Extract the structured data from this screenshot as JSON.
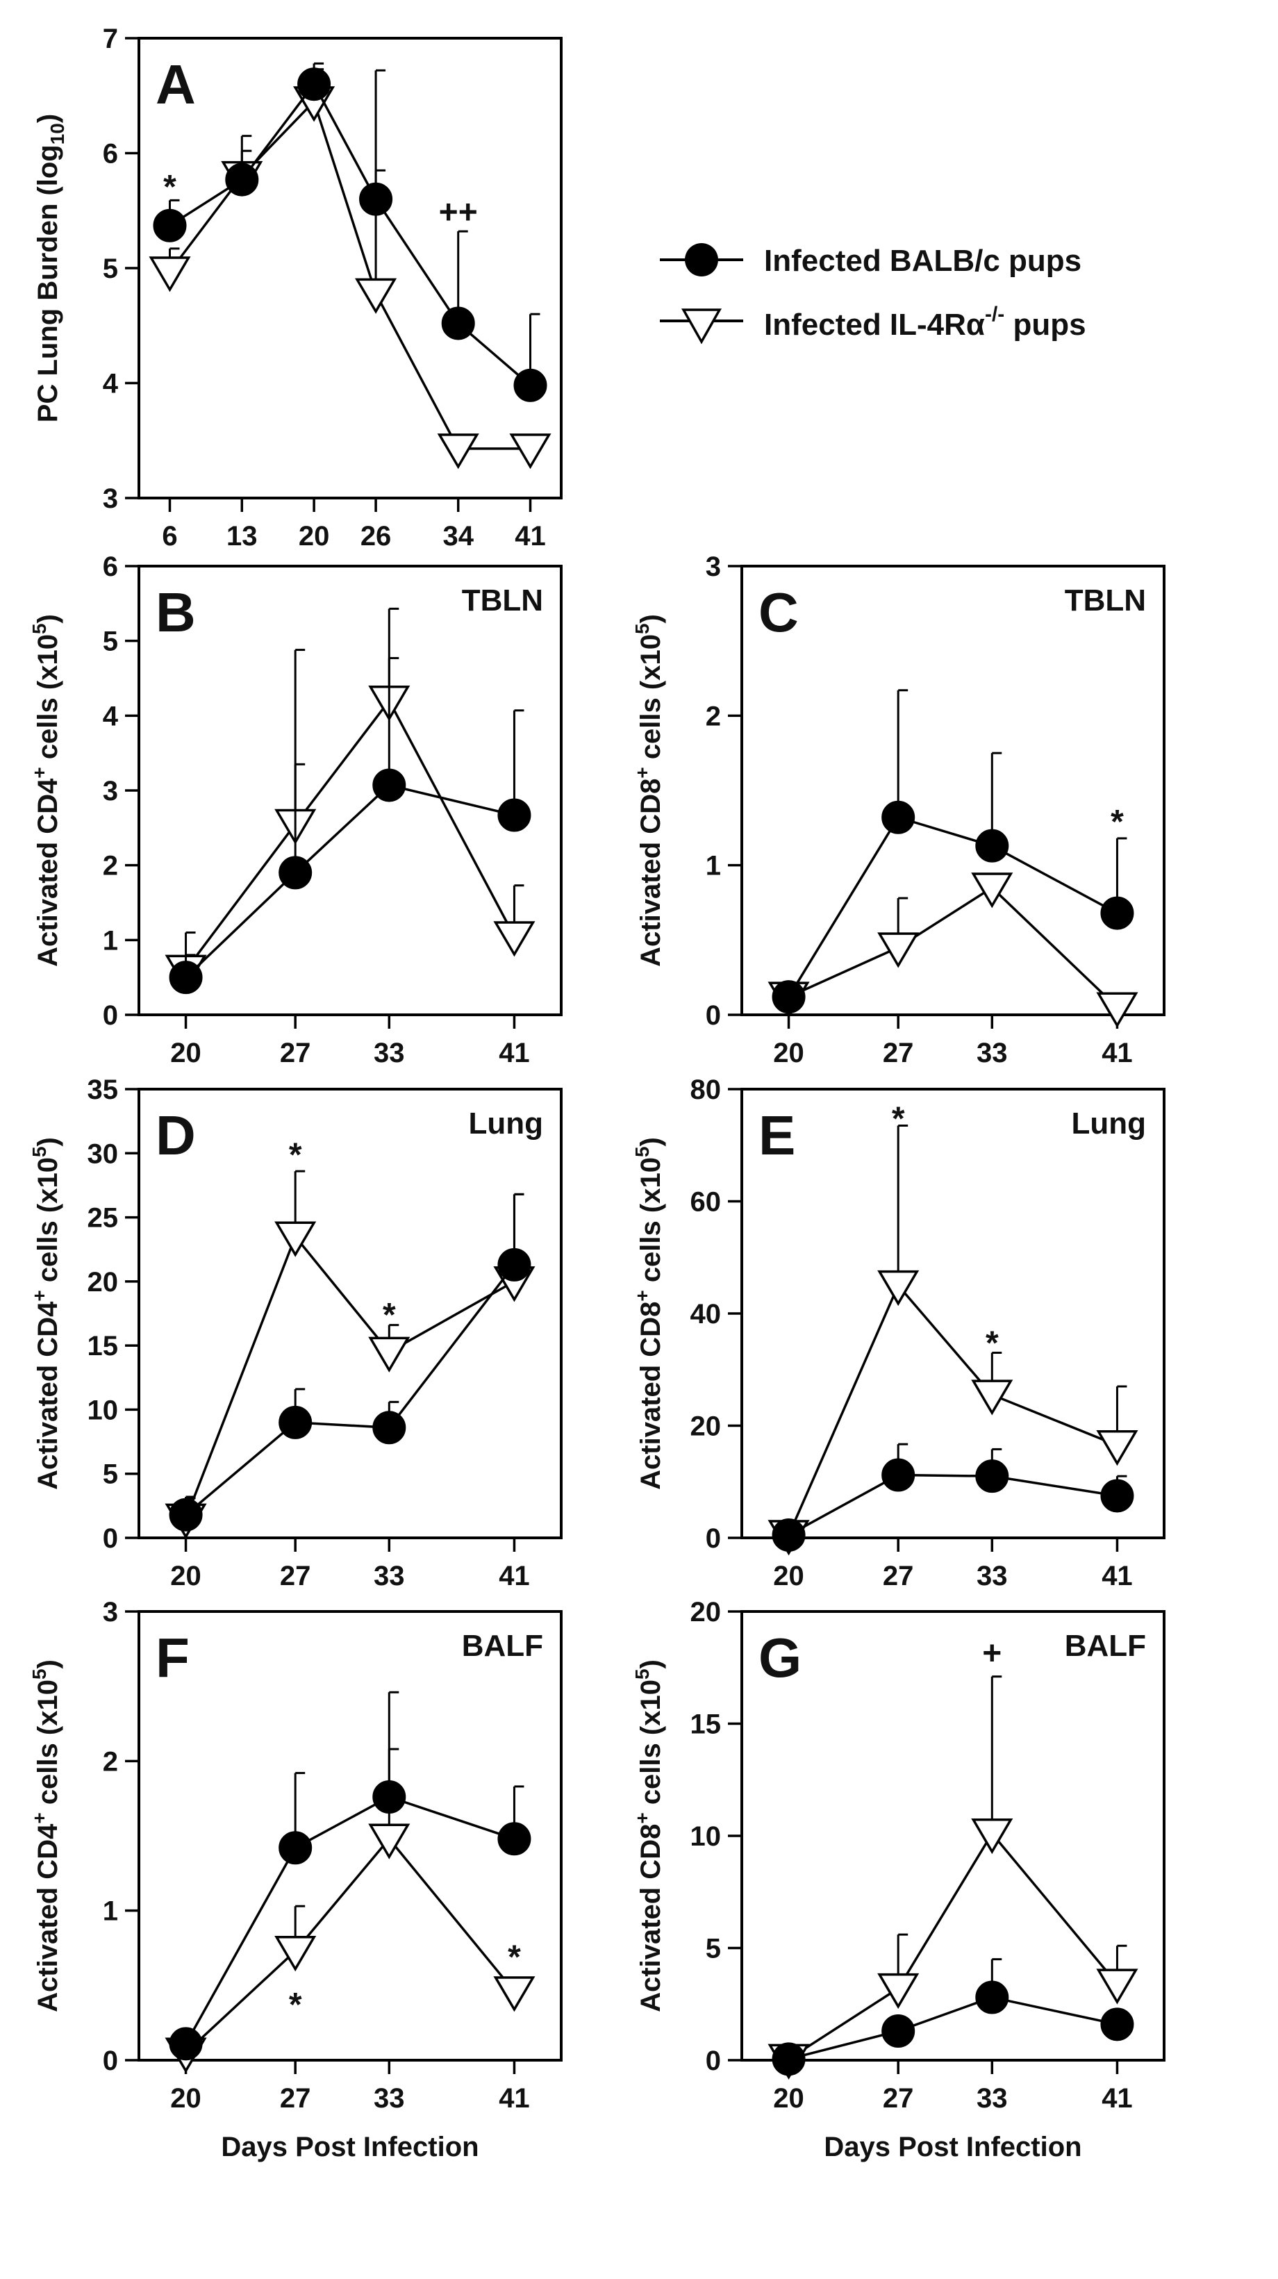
{
  "legend": {
    "entries": [
      {
        "label": "Infected BALB/c pups",
        "marker": "filled-circle"
      },
      {
        "label": "Infected IL-4Rα",
        "sup": "-/-",
        "suffix": " pups",
        "marker": "open-triangle-down"
      }
    ]
  },
  "chart_data": [
    {
      "id": "A",
      "type": "line",
      "panel_label": "A",
      "region_label": "",
      "ylabel": "PC Lung Burden (log",
      "ylabel_sub": "10",
      "ylabel_suffix": ")",
      "ylabel_sup": "",
      "xlabel": "",
      "ylim": [
        3,
        7
      ],
      "yticks": [
        3,
        4,
        5,
        6,
        7
      ],
      "xlim": [
        3,
        44
      ],
      "xticks": [
        6,
        13,
        20,
        26,
        34,
        41
      ],
      "series": [
        {
          "name": "Infected BALB/c pups",
          "marker": "circle",
          "x": [
            6,
            13,
            20,
            26,
            34,
            41
          ],
          "y": [
            5.37,
            5.77,
            6.6,
            5.6,
            4.52,
            3.98
          ],
          "err": [
            0.22,
            0.25,
            0.18,
            1.12,
            0.8,
            0.62
          ]
        },
        {
          "name": "Infected IL-4Rα-/- pups",
          "marker": "triangle",
          "x": [
            6,
            13,
            20,
            26,
            34,
            41
          ],
          "y": [
            4.97,
            5.8,
            6.45,
            4.78,
            3.43,
            3.43
          ],
          "err": [
            0.2,
            0.35,
            0.28,
            1.07,
            0,
            0
          ]
        }
      ],
      "annotations": [
        {
          "text": "*",
          "x": 6,
          "y": 5.72
        },
        {
          "text": "++",
          "x": 34,
          "y": 5.5
        }
      ]
    },
    {
      "id": "B",
      "type": "line",
      "panel_label": "B",
      "region_label": "TBLN",
      "ylabel": "Activated CD4",
      "ylabel_sup": "+",
      "ylabel_suffix": " cells (x10",
      "ylabel_sup2": "5",
      "ylabel_end": ")",
      "xlabel": "",
      "ylim": [
        0,
        6
      ],
      "yticks": [
        0,
        1,
        2,
        3,
        4,
        5,
        6
      ],
      "xlim": [
        17,
        44
      ],
      "xticks": [
        20,
        27,
        33,
        41
      ],
      "series": [
        {
          "name": "Infected BALB/c pups",
          "marker": "circle",
          "x": [
            20,
            27,
            33,
            41
          ],
          "y": [
            0.5,
            1.9,
            3.07,
            2.67
          ],
          "err": [
            0.3,
            1.45,
            1.7,
            1.4
          ]
        },
        {
          "name": "Infected IL-4Rα-/- pups",
          "marker": "triangle",
          "x": [
            20,
            27,
            33,
            41
          ],
          "y": [
            0.6,
            2.55,
            4.2,
            1.05
          ],
          "err": [
            0.5,
            2.33,
            1.23,
            0.68
          ]
        }
      ],
      "annotations": []
    },
    {
      "id": "C",
      "type": "line",
      "panel_label": "C",
      "region_label": "TBLN",
      "ylabel": "Activated CD8",
      "ylabel_sup": "+",
      "ylabel_suffix": " cells (x10",
      "ylabel_sup2": "5",
      "ylabel_end": ")",
      "xlabel": "",
      "ylim": [
        0,
        3
      ],
      "yticks": [
        0,
        1,
        2,
        3
      ],
      "xlim": [
        17,
        44
      ],
      "xticks": [
        20,
        27,
        33,
        41
      ],
      "series": [
        {
          "name": "Infected BALB/c pups",
          "marker": "circle",
          "x": [
            20,
            27,
            33,
            41
          ],
          "y": [
            0.12,
            1.32,
            1.13,
            0.68
          ],
          "err": [
            0.05,
            0.85,
            0.62,
            0.5
          ]
        },
        {
          "name": "Infected IL-4Rα-/- pups",
          "marker": "triangle",
          "x": [
            20,
            27,
            33,
            41
          ],
          "y": [
            0.12,
            0.45,
            0.85,
            0.05
          ],
          "err": [
            0.05,
            0.33,
            0.05,
            0
          ]
        }
      ],
      "annotations": [
        {
          "text": "*",
          "x": 41,
          "y": 1.3
        }
      ]
    },
    {
      "id": "D",
      "type": "line",
      "panel_label": "D",
      "region_label": "Lung",
      "ylabel": "Activated CD4",
      "ylabel_sup": "+",
      "ylabel_suffix": " cells (x10",
      "ylabel_sup2": "5",
      "ylabel_end": ")",
      "xlabel": "",
      "ylim": [
        0,
        35
      ],
      "yticks": [
        0,
        5,
        10,
        15,
        20,
        25,
        30,
        35
      ],
      "xlim": [
        17,
        44
      ],
      "xticks": [
        20,
        27,
        33,
        41
      ],
      "series": [
        {
          "name": "Infected BALB/c pups",
          "marker": "circle",
          "x": [
            20,
            27,
            33,
            41
          ],
          "y": [
            1.8,
            9.0,
            8.6,
            21.3
          ],
          "err": [
            1.4,
            2.6,
            2.0,
            5.5
          ]
        },
        {
          "name": "Infected IL-4Rα-/- pups",
          "marker": "triangle",
          "x": [
            20,
            27,
            33,
            41
          ],
          "y": [
            1.5,
            23.5,
            14.5,
            20.0
          ],
          "err": [
            1.6,
            5.1,
            2.1,
            6.8
          ]
        }
      ],
      "annotations": [
        {
          "text": "*",
          "x": 27,
          "y": 30
        },
        {
          "text": "*",
          "x": 33,
          "y": 17.5
        }
      ]
    },
    {
      "id": "E",
      "type": "line",
      "panel_label": "E",
      "region_label": "Lung",
      "ylabel": "Activated CD8",
      "ylabel_sup": "+",
      "ylabel_suffix": " cells (x10",
      "ylabel_sup2": "5",
      "ylabel_end": ")",
      "xlabel": "",
      "ylim": [
        0,
        80
      ],
      "yticks": [
        0,
        20,
        40,
        60,
        80
      ],
      "xlim": [
        17,
        44
      ],
      "xticks": [
        20,
        27,
        33,
        41
      ],
      "series": [
        {
          "name": "Infected BALB/c pups",
          "marker": "circle",
          "x": [
            20,
            27,
            33,
            41
          ],
          "y": [
            0.5,
            11.2,
            11.0,
            7.5
          ],
          "err": [
            0.3,
            5.5,
            4.8,
            3.5
          ]
        },
        {
          "name": "Infected IL-4Rα-/- pups",
          "marker": "triangle",
          "x": [
            20,
            27,
            33,
            41
          ],
          "y": [
            0.5,
            45.0,
            25.5,
            16.5
          ],
          "err": [
            0.3,
            28.5,
            7.5,
            10.5
          ]
        }
      ],
      "annotations": [
        {
          "text": "*",
          "x": 27,
          "y": 75
        },
        {
          "text": "*",
          "x": 33,
          "y": 35
        }
      ]
    },
    {
      "id": "F",
      "type": "line",
      "panel_label": "F",
      "region_label": "BALF",
      "ylabel": "Activated CD4",
      "ylabel_sup": "+",
      "ylabel_suffix": " cells (x10",
      "ylabel_sup2": "5",
      "ylabel_end": ")",
      "xlabel": "Days Post Infection",
      "ylim": [
        0,
        3
      ],
      "yticks": [
        0,
        1,
        2,
        3
      ],
      "xlim": [
        17,
        44
      ],
      "xticks": [
        20,
        27,
        33,
        41
      ],
      "series": [
        {
          "name": "Infected BALB/c pups",
          "marker": "circle",
          "x": [
            20,
            27,
            33,
            41
          ],
          "y": [
            0.11,
            1.42,
            1.76,
            1.48
          ],
          "err": [
            0.05,
            0.5,
            0.7,
            0.35
          ]
        },
        {
          "name": "Infected IL-4Rα-/- pups",
          "marker": "triangle",
          "x": [
            20,
            27,
            33,
            41
          ],
          "y": [
            0.05,
            0.73,
            1.48,
            0.46
          ],
          "err": [
            0.05,
            0.3,
            0.6,
            0
          ]
        }
      ],
      "annotations": [
        {
          "text": "*",
          "x": 27,
          "y": 0.38
        },
        {
          "text": "*",
          "x": 41,
          "y": 0.7
        }
      ]
    },
    {
      "id": "G",
      "type": "line",
      "panel_label": "G",
      "region_label": "BALF",
      "ylabel": "Activated CD8",
      "ylabel_sup": "+",
      "ylabel_suffix": " cells (x10",
      "ylabel_sup2": "5",
      "ylabel_end": ")",
      "xlabel": "Days Post Infection",
      "ylim": [
        0,
        20
      ],
      "yticks": [
        0,
        5,
        10,
        15,
        20
      ],
      "xlim": [
        17,
        44
      ],
      "xticks": [
        20,
        27,
        33,
        41
      ],
      "series": [
        {
          "name": "Infected BALB/c pups",
          "marker": "circle",
          "x": [
            20,
            27,
            33,
            41
          ],
          "y": [
            0.05,
            1.3,
            2.8,
            1.6
          ],
          "err": [
            0.05,
            0.5,
            1.7,
            0.3
          ]
        },
        {
          "name": "Infected IL-4Rα-/- pups",
          "marker": "triangle",
          "x": [
            20,
            27,
            33,
            41
          ],
          "y": [
            0.05,
            3.2,
            10.1,
            3.4
          ],
          "err": [
            0.05,
            2.4,
            7.0,
            1.7
          ]
        }
      ],
      "annotations": [
        {
          "text": "+",
          "x": 33,
          "y": 18.2
        }
      ]
    }
  ]
}
